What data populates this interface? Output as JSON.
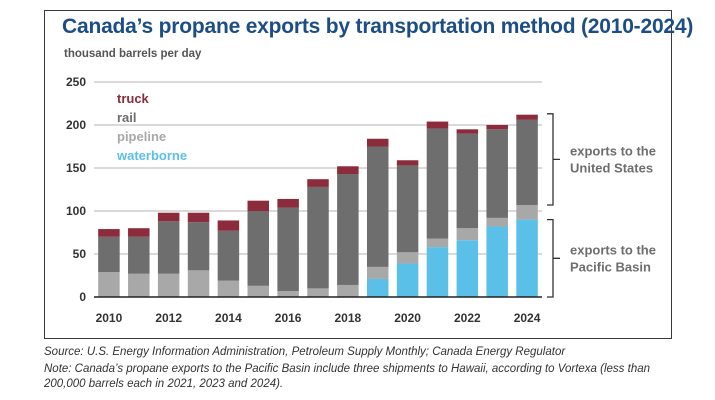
{
  "header": {
    "title": "Canada’s propane exports by transportation method (2010-2024)",
    "units": "thousand barrels per day"
  },
  "footer": {
    "source": "Source: U.S. Energy Information Administration, Petroleum Supply Monthly; Canada Energy Regulator",
    "note": "Note: Canada’s propane exports to the Pacific Basin include three shipments to Hawaii, according to Vortexa (less than 200,000 barrels each in 2021, 2023 and 2024)."
  },
  "chart_data": {
    "type": "bar",
    "stacked": true,
    "title": "Canada’s propane exports by transportation method (2010-2024)",
    "ylabel": "thousand barrels per day",
    "ylim": [
      0,
      250
    ],
    "yticks": [
      0,
      50,
      100,
      150,
      200,
      250
    ],
    "grid": true,
    "legend_position": "top-left",
    "categories": [
      "2010",
      "2011",
      "2012",
      "2013",
      "2014",
      "2015",
      "2016",
      "2017",
      "2018",
      "2019",
      "2020",
      "2021",
      "2022",
      "2023",
      "2024"
    ],
    "xtick_labels": [
      "2010",
      "2012",
      "2014",
      "2016",
      "2018",
      "2020",
      "2022",
      "2024"
    ],
    "series": [
      {
        "name": "waterborne",
        "color": "#5bc0e8",
        "values": [
          0,
          0,
          0,
          0,
          0,
          0,
          0,
          0,
          0,
          21,
          39,
          58,
          66,
          82,
          90
        ]
      },
      {
        "name": "pipeline",
        "color": "#a8a8a8",
        "values": [
          29,
          27,
          27,
          31,
          19,
          13,
          7,
          10,
          14,
          14,
          13,
          10,
          14,
          10,
          17
        ]
      },
      {
        "name": "rail",
        "color": "#6e6e6e",
        "values": [
          41,
          43,
          61,
          56,
          58,
          87,
          97,
          118,
          129,
          140,
          101,
          128,
          110,
          103,
          99
        ]
      },
      {
        "name": "truck",
        "color": "#8c2b3c",
        "values": [
          9,
          10,
          10,
          11,
          12,
          12,
          10,
          9,
          9,
          9,
          6,
          8,
          5,
          5,
          6
        ]
      }
    ],
    "legend_order": [
      "truck",
      "rail",
      "pipeline",
      "waterborne"
    ],
    "annotations": [
      {
        "text": "exports to the United States",
        "lines": [
          "exports to the",
          "United States"
        ],
        "range": [
          107,
          213
        ]
      },
      {
        "text": "exports to the Pacific Basin",
        "lines": [
          "exports to the",
          "Pacific Basin"
        ],
        "range": [
          0,
          90
        ]
      }
    ]
  }
}
